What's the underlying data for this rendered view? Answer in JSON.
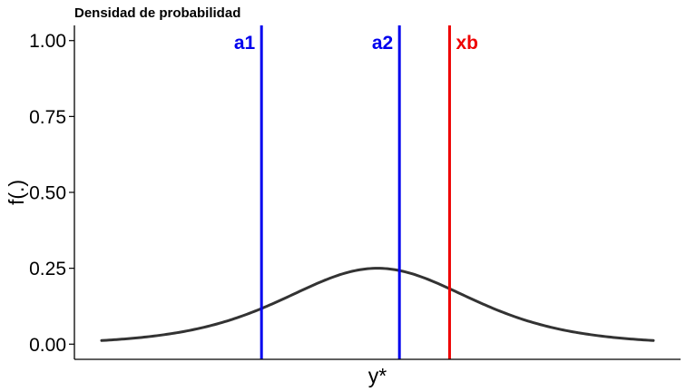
{
  "chart_data": {
    "type": "line",
    "title": "Densidad de probabilidad",
    "xlabel": "y*",
    "ylabel": "f(.)",
    "xlim": [
      -4.4,
      4.4
    ],
    "ylim": [
      -0.05,
      1.05
    ],
    "x_ticks_shown": false,
    "y_ticks": [
      {
        "value": 0.0,
        "label": "0.00"
      },
      {
        "value": 0.25,
        "label": "0.25"
      },
      {
        "value": 0.5,
        "label": "0.50"
      },
      {
        "value": 0.75,
        "label": "0.75"
      },
      {
        "value": 1.0,
        "label": "1.00"
      }
    ],
    "grid": false,
    "legend": "none",
    "series": [
      {
        "color": "#333333",
        "distribution": "logistic",
        "x": [
          -4.4,
          -4.0,
          -3.6,
          -3.2,
          -2.8,
          -2.4,
          -2.0,
          -1.6,
          -1.2,
          -0.8,
          -0.4,
          0.0,
          0.4,
          0.8,
          1.2,
          1.6,
          2.0,
          2.4,
          2.8,
          3.2,
          3.6,
          4.0,
          4.4
        ],
        "y": [
          0.0121,
          0.0177,
          0.0259,
          0.0376,
          0.0541,
          0.0765,
          0.105,
          0.1396,
          0.1779,
          0.2139,
          0.2403,
          0.25,
          0.2403,
          0.2139,
          0.1779,
          0.1396,
          0.105,
          0.0765,
          0.0541,
          0.0376,
          0.0259,
          0.0177,
          0.0121
        ]
      }
    ],
    "vertical_lines": [
      {
        "label": "a1",
        "x": -1.85,
        "color": "#0000ee",
        "label_side": "left"
      },
      {
        "label": "a2",
        "x": 0.35,
        "color": "#0000ee",
        "label_side": "left"
      },
      {
        "label": "xb",
        "x": 1.15,
        "color": "#ee0000",
        "label_side": "right"
      }
    ]
  }
}
